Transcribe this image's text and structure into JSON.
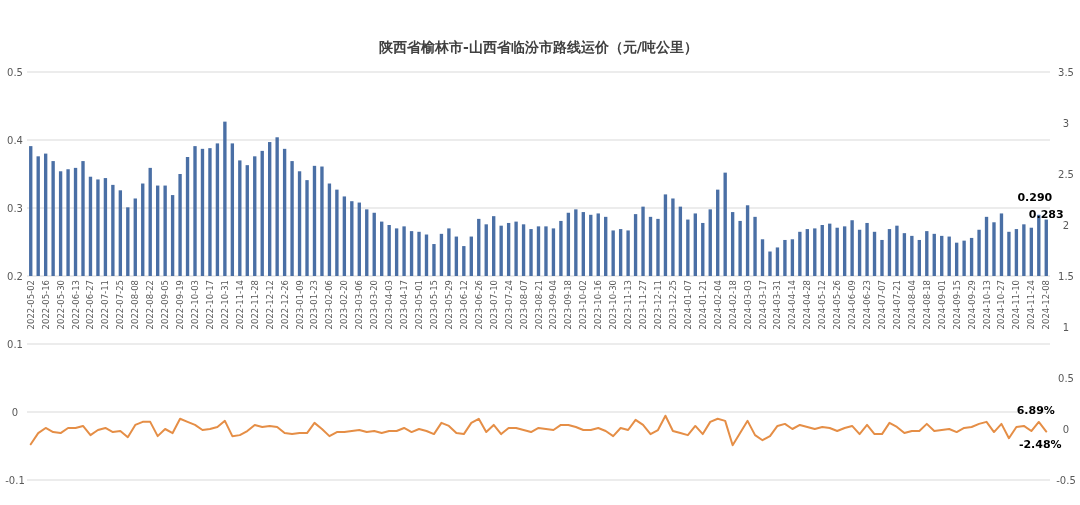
{
  "chart_data": {
    "type": "bar",
    "title": "陕西省榆林市-山西省临汾市路线运价（元/吨公里）",
    "categories": [
      "2022-05-02",
      null,
      "2022-05-16",
      null,
      "2022-05-30",
      null,
      "2022-06-13",
      null,
      "2022-06-27",
      null,
      "2022-07-11",
      null,
      "2022-07-25",
      null,
      "2022-08-08",
      null,
      "2022-08-22",
      null,
      "2022-09-05",
      null,
      "2022-09-19",
      null,
      "2022-10-03",
      null,
      "2022-10-17",
      null,
      "2022-10-31",
      null,
      "2022-11-14",
      null,
      "2022-11-28",
      null,
      "2022-12-12",
      null,
      "2022-12-26",
      null,
      "2023-01-09",
      null,
      "2023-01-23",
      null,
      "2023-02-06",
      null,
      "2023-02-20",
      null,
      "2023-03-06",
      null,
      "2023-03-20",
      null,
      "2023-04-03",
      null,
      "2023-04-17",
      null,
      "2023-05-01",
      null,
      "2023-05-15",
      null,
      "2023-05-29",
      null,
      "2023-06-12",
      null,
      "2023-06-26",
      null,
      "2023-07-10",
      null,
      "2023-07-24",
      null,
      "2023-08-07",
      null,
      "2023-08-21",
      null,
      "2023-09-04",
      null,
      "2023-09-18",
      null,
      "2023-10-02",
      null,
      "2023-10-16",
      null,
      "2023-10-30",
      null,
      "2023-11-13",
      null,
      "2023-11-27",
      null,
      "2023-12-11",
      null,
      "2023-12-25",
      null,
      "2024-01-07",
      null,
      "2024-01-21",
      null,
      "2024-02-04",
      null,
      "2024-02-18",
      null,
      "2024-03-03",
      null,
      "2024-03-17",
      null,
      "2024-03-31",
      null,
      "2024-04-14",
      null,
      "2024-04-28",
      null,
      "2024-05-12",
      null,
      "2024-05-26",
      null,
      "2024-06-09",
      null,
      "2024-06-23",
      null,
      "2024-07-07",
      null,
      "2024-07-21",
      null,
      "2024-08-04",
      null,
      "2024-08-18",
      null,
      "2024-09-01",
      null,
      "2024-09-15",
      null,
      "2024-09-29",
      null,
      "2024-10-13",
      null,
      "2024-10-27",
      null,
      "2024-11-10",
      null,
      "2024-11-24",
      null,
      "2024-12-08"
    ],
    "series": [
      {
        "color": "#4a6fa5",
        "base": [
          0.2,
          0.2,
          0.2,
          0.2,
          0.2,
          0.2,
          0.2,
          0.2,
          0.2,
          0.2,
          0.2,
          0.2,
          0.2,
          0.2,
          0.2,
          0.2,
          0.2,
          0.2,
          0.2,
          0.2,
          0.2,
          0.2,
          0.2,
          0.2,
          0.2,
          0.2,
          0.2,
          0.2,
          0.2,
          0.2,
          0.2,
          0.2,
          0.2,
          0.2,
          0.2,
          0.2,
          0.2,
          0.2,
          0.2,
          0.2,
          0.2,
          0.2,
          0.2,
          0.2,
          0.2,
          0.2,
          0.2,
          0.2,
          0.2,
          0.2,
          0.2,
          0.2,
          0.2,
          0.2,
          0.2,
          0.2,
          0.2,
          0.2,
          0.2,
          0.2,
          0.2,
          0.2,
          0.2,
          0.2,
          0.2,
          0.2,
          0.2,
          0.2,
          0.2,
          0.2,
          0.2,
          0.2,
          0.2,
          0.2,
          0.2,
          0.2,
          0.2,
          0.2,
          0.2,
          0.2,
          0.2,
          0.2,
          0.2,
          0.2,
          0.2,
          0.2,
          0.2,
          0.2,
          0.2,
          0.2,
          0.2,
          0.2,
          0.2,
          0.2,
          0.2,
          0.2,
          0.2,
          0.2,
          0.2,
          0.2,
          0.2,
          0.2,
          0.2,
          0.2,
          0.2,
          0.2,
          0.2,
          0.2,
          0.2,
          0.2,
          0.2,
          0.2,
          0.2,
          0.2,
          0.2,
          0.2,
          0.2,
          0.2,
          0.2,
          0.2,
          0.2,
          0.2,
          0.2,
          0.2,
          0.2,
          0.2,
          0.2,
          0.2,
          0.2,
          0.2,
          0.2,
          0.2,
          0.2,
          0.2,
          0.2,
          0.2,
          0.2
        ],
        "values": [
          0.191,
          0.176,
          0.18,
          0.169,
          0.154,
          0.157,
          0.159,
          0.169,
          0.146,
          0.142,
          0.144,
          0.134,
          0.126,
          0.101,
          0.114,
          0.136,
          0.159,
          0.133,
          0.133,
          0.119,
          0.15,
          0.175,
          0.191,
          0.187,
          0.188,
          0.195,
          0.227,
          0.195,
          0.17,
          0.163,
          0.176,
          0.184,
          0.197,
          0.204,
          0.187,
          0.169,
          0.154,
          0.141,
          0.162,
          0.161,
          0.136,
          0.127,
          0.117,
          0.11,
          0.108,
          0.098,
          0.093,
          0.08,
          0.075,
          0.07,
          0.073,
          0.066,
          0.065,
          0.061,
          0.047,
          0.062,
          0.07,
          0.058,
          0.044,
          0.058,
          0.084,
          0.076,
          0.088,
          0.074,
          0.078,
          0.08,
          0.076,
          0.069,
          0.073,
          0.073,
          0.07,
          0.081,
          0.093,
          0.098,
          0.094,
          0.09,
          0.092,
          0.087,
          0.067,
          0.069,
          0.067,
          0.091,
          0.102,
          0.087,
          0.084,
          0.12,
          0.114,
          0.102,
          0.083,
          0.092,
          0.078,
          0.098,
          0.127,
          0.152,
          0.094,
          0.081,
          0.104,
          0.087,
          0.054,
          0.036,
          0.042,
          0.053,
          0.054,
          0.065,
          0.069,
          0.07,
          0.075,
          0.077,
          0.071,
          0.073,
          0.082,
          0.068,
          0.078,
          0.065,
          0.053,
          0.069,
          0.074,
          0.063,
          0.059,
          0.053,
          0.066,
          0.062,
          0.059,
          0.058,
          0.049,
          0.052,
          0.056,
          0.068,
          0.087,
          0.079,
          0.092,
          0.065,
          0.069,
          0.076,
          0.071,
          0.09,
          0.083
        ],
        "value_labels": [
          null,
          null,
          null,
          null,
          null,
          null,
          null,
          null,
          null,
          null,
          null,
          null,
          null,
          null,
          null,
          null,
          null,
          null,
          null,
          null,
          null,
          null,
          null,
          null,
          null,
          null,
          null,
          null,
          null,
          null,
          null,
          null,
          null,
          null,
          null,
          null,
          null,
          null,
          null,
          null,
          null,
          null,
          null,
          null,
          null,
          null,
          null,
          null,
          null,
          null,
          null,
          null,
          null,
          null,
          null,
          null,
          null,
          null,
          null,
          null,
          null,
          null,
          null,
          null,
          null,
          null,
          null,
          null,
          null,
          null,
          null,
          null,
          null,
          null,
          null,
          null,
          null,
          null,
          null,
          null,
          null,
          null,
          null,
          null,
          null,
          null,
          null,
          null,
          null,
          null,
          null,
          null,
          null,
          null,
          null,
          null,
          null,
          null,
          null,
          null,
          null,
          null,
          null,
          null,
          null,
          null,
          null,
          null,
          null,
          null,
          null,
          null,
          null,
          null,
          null,
          null,
          null,
          null,
          null,
          null,
          null,
          null,
          null,
          null,
          null,
          null,
          null,
          null,
          null,
          null,
          null,
          null,
          null,
          null,
          null,
          "0.290",
          "0.283"
        ]
      },
      {
        "type": "line",
        "axis": "y2",
        "color": "#e58e46",
        "values": [
          -0.15,
          -0.04,
          0.01,
          -0.03,
          -0.04,
          0.01,
          0.01,
          0.03,
          -0.06,
          -0.01,
          0.01,
          -0.03,
          -0.02,
          -0.08,
          0.04,
          0.07,
          0.07,
          -0.07,
          0,
          -0.04,
          0.1,
          0.07,
          0.04,
          -0.01,
          0,
          0.02,
          0.08,
          -0.07,
          -0.06,
          -0.02,
          0.04,
          0.02,
          0.03,
          0.02,
          -0.04,
          -0.05,
          -0.04,
          -0.04,
          0.06,
          0,
          -0.07,
          -0.03,
          -0.03,
          -0.02,
          -0.01,
          -0.03,
          -0.02,
          -0.04,
          -0.02,
          -0.02,
          0.01,
          -0.03,
          0,
          -0.02,
          -0.05,
          0.06,
          0.03,
          -0.04,
          -0.05,
          0.06,
          0.1,
          -0.03,
          0.04,
          -0.05,
          0.01,
          0.01,
          -0.01,
          -0.03,
          0.01,
          0,
          -0.01,
          0.04,
          0.04,
          0.02,
          -0.01,
          -0.01,
          0.01,
          -0.02,
          -0.07,
          0.01,
          -0.01,
          0.09,
          0.04,
          -0.05,
          -0.01,
          0.13,
          -0.02,
          -0.04,
          -0.06,
          0.03,
          -0.05,
          0.07,
          0.1,
          0.08,
          -0.16,
          -0.04,
          0.08,
          -0.06,
          -0.11,
          -0.07,
          0.03,
          0.05,
          0,
          0.04,
          0.02,
          0,
          0.02,
          0.01,
          -0.02,
          0.01,
          0.03,
          -0.05,
          0.04,
          -0.05,
          -0.05,
          0.06,
          0.02,
          -0.04,
          -0.02,
          -0.02,
          0.05,
          -0.02,
          -0.01,
          0,
          -0.03,
          0.01,
          0.02,
          0.05,
          0.07,
          -0.03,
          0.05,
          -0.09,
          0.02,
          0.03,
          -0.02,
          0.0689,
          -0.0248
        ],
        "value_labels": [
          null,
          null,
          null,
          null,
          null,
          null,
          null,
          null,
          null,
          null,
          null,
          null,
          null,
          null,
          null,
          null,
          null,
          null,
          null,
          null,
          null,
          null,
          null,
          null,
          null,
          null,
          null,
          null,
          null,
          null,
          null,
          null,
          null,
          null,
          null,
          null,
          null,
          null,
          null,
          null,
          null,
          null,
          null,
          null,
          null,
          null,
          null,
          null,
          null,
          null,
          null,
          null,
          null,
          null,
          null,
          null,
          null,
          null,
          null,
          null,
          null,
          null,
          null,
          null,
          null,
          null,
          null,
          null,
          null,
          null,
          null,
          null,
          null,
          null,
          null,
          null,
          null,
          null,
          null,
          null,
          null,
          null,
          null,
          null,
          null,
          null,
          null,
          null,
          null,
          null,
          null,
          null,
          null,
          null,
          null,
          null,
          null,
          null,
          null,
          null,
          null,
          null,
          null,
          null,
          null,
          null,
          null,
          null,
          null,
          null,
          null,
          null,
          null,
          null,
          null,
          null,
          null,
          null,
          null,
          null,
          null,
          null,
          null,
          null,
          null,
          null,
          null,
          null,
          null,
          null,
          null,
          null,
          null,
          null,
          null,
          "6.89%",
          "-2.48%"
        ]
      }
    ],
    "ylim": [
      -0.1,
      0.5
    ],
    "yticks": [
      -0.1,
      0,
      0.1,
      0.2,
      0.3,
      0.4,
      0.5
    ],
    "y2lim": [
      -0.5,
      3.5
    ],
    "y2ticks": [
      -0.5,
      0,
      0.5,
      1,
      1.5,
      2,
      2.5,
      3,
      3.5
    ],
    "grid": "y"
  }
}
